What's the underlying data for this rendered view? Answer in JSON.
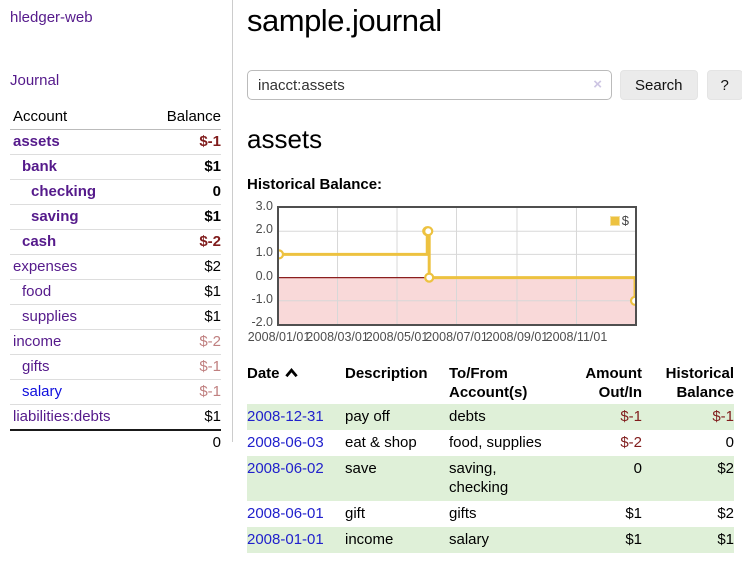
{
  "colors": {
    "link_purple": "#551a8b",
    "link_blue": "#0f0fdd",
    "negative_strong": "#801c1c",
    "negative_muted": "#c08080",
    "row_green": "#dff0d8",
    "series_gold": "#edc240"
  },
  "sidebar": {
    "brand": "hledger-web",
    "journal": "Journal",
    "accounts_table": {
      "col_account": "Account",
      "col_balance": "Balance",
      "rows": [
        {
          "name": "assets",
          "indent": 0,
          "bold": true,
          "balance": "$-1",
          "neg": "strong"
        },
        {
          "name": "bank",
          "indent": 1,
          "bold": true,
          "balance": "$1"
        },
        {
          "name": "checking",
          "indent": 2,
          "bold": true,
          "balance": "0"
        },
        {
          "name": "saving",
          "indent": 2,
          "bold": true,
          "balance": "$1"
        },
        {
          "name": "cash",
          "indent": 1,
          "bold": true,
          "balance": "$-2",
          "neg": "strong"
        },
        {
          "name": "expenses",
          "indent": 0,
          "bold": false,
          "balance": "$2"
        },
        {
          "name": "food",
          "indent": 1,
          "bold": false,
          "balance": "$1"
        },
        {
          "name": "supplies",
          "indent": 1,
          "bold": false,
          "balance": "$1"
        },
        {
          "name": "income",
          "indent": 0,
          "bold": false,
          "balance": "$-2",
          "neg": "muted"
        },
        {
          "name": "gifts",
          "indent": 1,
          "bold": false,
          "balance": "$-1",
          "neg": "muted"
        },
        {
          "name": "salary",
          "indent": 1,
          "bold": false,
          "balance": "$-1",
          "neg": "muted",
          "link": "blue"
        },
        {
          "name": "liabilities:debts",
          "indent": 0,
          "bold": false,
          "balance": "$1"
        }
      ],
      "total": "0"
    }
  },
  "header": {
    "title": "sample.journal"
  },
  "search": {
    "value": "inacct:assets",
    "clear_icon": "×",
    "button_label": "Search",
    "help_label": "?"
  },
  "account_page": {
    "heading": "assets",
    "chart_label": "Historical Balance:"
  },
  "chart_data": {
    "type": "line",
    "title": "Historical Balance",
    "step": true,
    "series": [
      {
        "name": "$",
        "color": "#edc240",
        "points": [
          [
            "2008-01-01",
            1
          ],
          [
            "2008-06-01",
            2
          ],
          [
            "2008-06-02",
            2
          ],
          [
            "2008-06-03",
            0
          ],
          [
            "2008-12-31",
            -1
          ]
        ]
      }
    ],
    "ylim": [
      -2,
      3
    ],
    "yticks": [
      3.0,
      2.0,
      1.0,
      0.0,
      -1.0,
      -2.0
    ],
    "ytick_labels": [
      "3.0",
      "2.0",
      "1.0",
      "0.0",
      "-1.0",
      "-2.0"
    ],
    "xticks": [
      "2008/01/01",
      "2008/03/01",
      "2008/05/01",
      "2008/07/01",
      "2008/09/01",
      "2008/11/01"
    ],
    "xrange": [
      "2008-01-01",
      "2008-12-31"
    ],
    "grid": true,
    "negative_region_color": "#f9d9d9",
    "zero_line_color": "#8b1e1e",
    "legend": {
      "label": "$",
      "position": "top-right"
    }
  },
  "register_table": {
    "headers": {
      "date": "Date",
      "description": "Description",
      "accounts": "To/From Account(s)",
      "amount": "Amount Out/In",
      "balance": "Historical Balance"
    },
    "sort": {
      "column": "date",
      "direction": "asc"
    },
    "rows": [
      {
        "date": "2008-12-31",
        "description": "pay off",
        "accounts": "debts",
        "amount": "$-1",
        "amount_neg": true,
        "balance": "$-1",
        "balance_neg": true,
        "green": true
      },
      {
        "date": "2008-06-03",
        "description": "eat & shop",
        "accounts": "food, supplies",
        "amount": "$-2",
        "amount_neg": true,
        "balance": "0",
        "balance_neg": false,
        "green": false
      },
      {
        "date": "2008-06-02",
        "description": "save",
        "accounts": "saving, checking",
        "amount": "0",
        "amount_neg": false,
        "balance": "$2",
        "balance_neg": false,
        "green": true
      },
      {
        "date": "2008-06-01",
        "description": "gift",
        "accounts": "gifts",
        "amount": "$1",
        "amount_neg": false,
        "balance": "$2",
        "balance_neg": false,
        "green": false
      },
      {
        "date": "2008-01-01",
        "description": "income",
        "accounts": "salary",
        "amount": "$1",
        "amount_neg": false,
        "balance": "$1",
        "balance_neg": false,
        "green": true
      }
    ]
  }
}
